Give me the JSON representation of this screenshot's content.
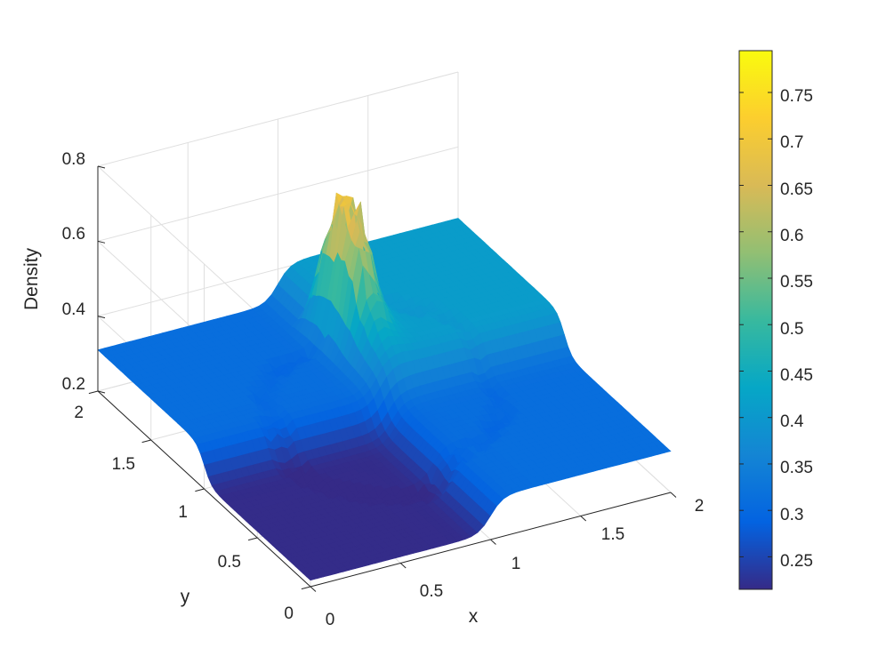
{
  "chart_data": {
    "type": "surface3d",
    "title": "",
    "xlabel": "x",
    "ylabel": "y",
    "zlabel": "Density",
    "xlim": [
      0,
      2
    ],
    "ylim": [
      0,
      2
    ],
    "zlim": [
      0.2,
      0.8
    ],
    "xticks": [
      "0",
      "0.5",
      "1",
      "1.5",
      "2"
    ],
    "yticks": [
      "0",
      "0.5",
      "1",
      "1.5",
      "2"
    ],
    "zticks": [
      "0.2",
      "0.4",
      "0.6",
      "0.8"
    ],
    "grid": true,
    "colormap": "parula",
    "colorbar": {
      "range": [
        0.215,
        0.795
      ],
      "ticks": [
        "0.25",
        "0.3",
        "0.35",
        "0.4",
        "0.45",
        "0.5",
        "0.55",
        "0.6",
        "0.65",
        "0.7",
        "0.75"
      ]
    },
    "regions": [
      {
        "quadrant": "x<1, y<1",
        "density": 0.217
      },
      {
        "quadrant": "x>1, y<1",
        "density": 0.31
      },
      {
        "quadrant": "x<1, y>1",
        "density": 0.31
      },
      {
        "quadrant": "x>1, y>1",
        "density": 0.41
      }
    ],
    "peak": {
      "x": 1.0,
      "y": 1.0,
      "density": 0.79
    }
  },
  "colors": {
    "parula": [
      "#352a87",
      "#0363e1",
      "#1485d4",
      "#06a7c6",
      "#38b99e",
      "#92bf73",
      "#d9ba56",
      "#fcce2e",
      "#f9fb0e"
    ],
    "axis": "#262626",
    "grid": "#dfdfdf"
  }
}
